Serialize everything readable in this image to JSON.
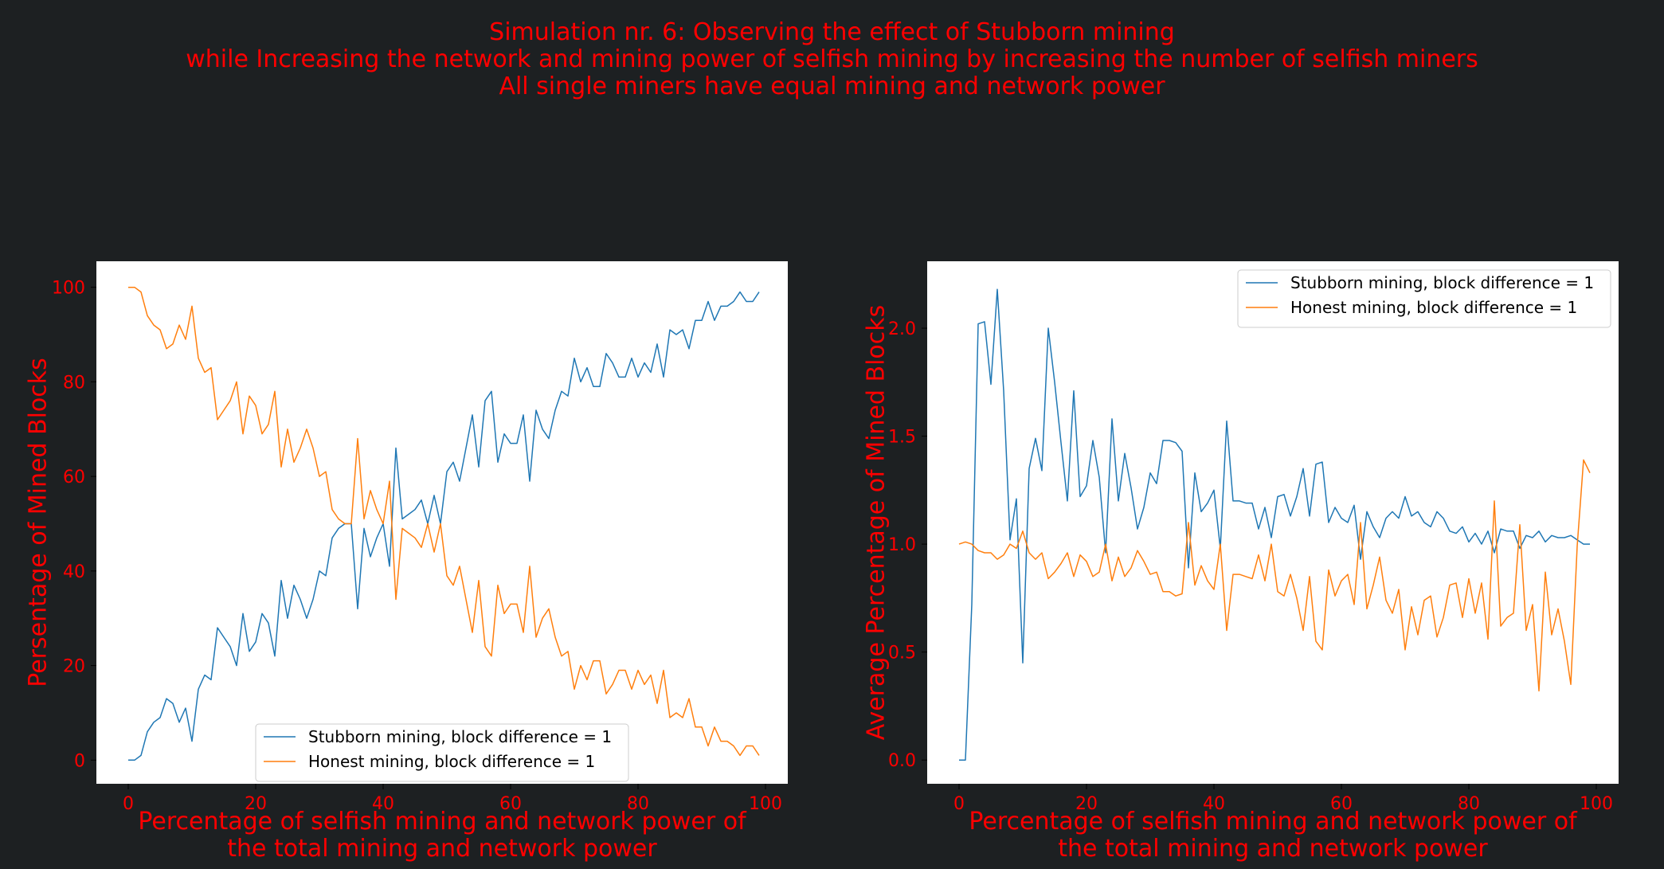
{
  "figure": {
    "title_lines": [
      "Simulation nr. 6: Observing the effect of Stubborn mining",
      "while Increasing the network and mining power of selfish mining by increasing the number of selfish miners",
      "All single miners have equal mining and network power"
    ]
  },
  "chart_data": [
    {
      "type": "line",
      "xlabel": "Percentage of selfish mining and network power of\nthe total mining and network power",
      "ylabel": "Persentage of Mined Blocks",
      "xlim": [
        -5,
        103.5
      ],
      "ylim": [
        -5,
        105.5
      ],
      "xticks": [
        0,
        20,
        40,
        60,
        80,
        100
      ],
      "yticks": [
        0,
        20,
        40,
        60,
        80,
        100
      ],
      "grid": false,
      "legend": "lower-right",
      "colors": [
        "#1f77b4",
        "#ff7f0e"
      ],
      "series": [
        {
          "name": "Stubborn mining, block difference = 1",
          "x": [
            0,
            1,
            2,
            3,
            4,
            5,
            6,
            7,
            8,
            9,
            10,
            11,
            12,
            13,
            14,
            15,
            16,
            17,
            18,
            19,
            20,
            21,
            22,
            23,
            24,
            25,
            26,
            27,
            28,
            29,
            30,
            31,
            32,
            33,
            34,
            35,
            36,
            37,
            38,
            39,
            40,
            41,
            42,
            43,
            44,
            45,
            46,
            47,
            48,
            49,
            50,
            51,
            52,
            53,
            54,
            55,
            56,
            57,
            58,
            59,
            60,
            61,
            62,
            63,
            64,
            65,
            66,
            67,
            68,
            69,
            70,
            71,
            72,
            73,
            74,
            75,
            76,
            77,
            78,
            79,
            80,
            81,
            82,
            83,
            84,
            85,
            86,
            87,
            88,
            89,
            90,
            91,
            92,
            93,
            94,
            95,
            96,
            97,
            98,
            99
          ],
          "values": [
            0,
            0,
            1,
            6,
            8,
            9,
            13,
            12,
            8,
            11,
            4,
            15,
            18,
            17,
            28,
            26,
            24,
            20,
            31,
            23,
            25,
            31,
            29,
            22,
            38,
            30,
            37,
            34,
            30,
            34,
            40,
            39,
            47,
            49,
            50,
            50,
            32,
            49,
            43,
            47,
            50,
            41,
            66,
            51,
            52,
            53,
            55,
            50,
            56,
            50,
            61,
            63,
            59,
            66,
            73,
            62,
            76,
            78,
            63,
            69,
            67,
            67,
            73,
            59,
            74,
            70,
            68,
            74,
            78,
            77,
            85,
            80,
            83,
            79,
            79,
            86,
            84,
            81,
            81,
            85,
            81,
            84,
            82,
            88,
            81,
            91,
            90,
            91,
            87,
            93,
            93,
            97,
            93,
            96,
            96,
            97,
            99,
            97,
            97,
            99
          ]
        },
        {
          "name": "Honest mining, block difference = 1",
          "x": [
            0,
            1,
            2,
            3,
            4,
            5,
            6,
            7,
            8,
            9,
            10,
            11,
            12,
            13,
            14,
            15,
            16,
            17,
            18,
            19,
            20,
            21,
            22,
            23,
            24,
            25,
            26,
            27,
            28,
            29,
            30,
            31,
            32,
            33,
            34,
            35,
            36,
            37,
            38,
            39,
            40,
            41,
            42,
            43,
            44,
            45,
            46,
            47,
            48,
            49,
            50,
            51,
            52,
            53,
            54,
            55,
            56,
            57,
            58,
            59,
            60,
            61,
            62,
            63,
            64,
            65,
            66,
            67,
            68,
            69,
            70,
            71,
            72,
            73,
            74,
            75,
            76,
            77,
            78,
            79,
            80,
            81,
            82,
            83,
            84,
            85,
            86,
            87,
            88,
            89,
            90,
            91,
            92,
            93,
            94,
            95,
            96,
            97,
            98,
            99
          ],
          "values": [
            100,
            100,
            99,
            94,
            92,
            91,
            87,
            88,
            92,
            89,
            96,
            85,
            82,
            83,
            72,
            74,
            76,
            80,
            69,
            77,
            75,
            69,
            71,
            78,
            62,
            70,
            63,
            66,
            70,
            66,
            60,
            61,
            53,
            51,
            50,
            50,
            68,
            51,
            57,
            53,
            50,
            59,
            34,
            49,
            48,
            47,
            45,
            50,
            44,
            50,
            39,
            37,
            41,
            34,
            27,
            38,
            24,
            22,
            37,
            31,
            33,
            33,
            27,
            41,
            26,
            30,
            32,
            26,
            22,
            23,
            15,
            20,
            17,
            21,
            21,
            14,
            16,
            19,
            19,
            15,
            19,
            16,
            18,
            12,
            19,
            9,
            10,
            9,
            13,
            7,
            7,
            3,
            7,
            4,
            4,
            3,
            1,
            3,
            3,
            1
          ]
        }
      ]
    },
    {
      "type": "line",
      "xlabel": "Percentage of selfish mining and network power of\nthe total mining and network power",
      "ylabel": "Average Percentage of Mined Blocks",
      "xlim": [
        -5,
        103.5
      ],
      "ylim": [
        -0.11,
        2.31
      ],
      "xticks": [
        0,
        20,
        40,
        60,
        80,
        100
      ],
      "yticks": [
        0.0,
        0.5,
        1.0,
        1.5,
        2.0
      ],
      "grid": false,
      "legend": "upper-right",
      "colors": [
        "#1f77b4",
        "#ff7f0e"
      ],
      "series": [
        {
          "name": "Stubborn mining, block difference = 1",
          "x": [
            0,
            1,
            2,
            3,
            4,
            5,
            6,
            7,
            8,
            9,
            10,
            11,
            12,
            13,
            14,
            15,
            16,
            17,
            18,
            19,
            20,
            21,
            22,
            23,
            24,
            25,
            26,
            27,
            28,
            29,
            30,
            31,
            32,
            33,
            34,
            35,
            36,
            37,
            38,
            39,
            40,
            41,
            42,
            43,
            44,
            45,
            46,
            47,
            48,
            49,
            50,
            51,
            52,
            53,
            54,
            55,
            56,
            57,
            58,
            59,
            60,
            61,
            62,
            63,
            64,
            65,
            66,
            67,
            68,
            69,
            70,
            71,
            72,
            73,
            74,
            75,
            76,
            77,
            78,
            79,
            80,
            81,
            82,
            83,
            84,
            85,
            86,
            87,
            88,
            89,
            90,
            91,
            92,
            93,
            94,
            95,
            96,
            97,
            98,
            99
          ],
          "values": [
            0,
            0,
            0.72,
            2.02,
            2.03,
            1.74,
            2.18,
            1.71,
            1.02,
            1.21,
            0.45,
            1.35,
            1.49,
            1.34,
            2.0,
            1.75,
            1.47,
            1.2,
            1.71,
            1.22,
            1.27,
            1.48,
            1.31,
            0.96,
            1.58,
            1.2,
            1.42,
            1.26,
            1.07,
            1.17,
            1.33,
            1.28,
            1.48,
            1.48,
            1.47,
            1.43,
            0.89,
            1.33,
            1.15,
            1.19,
            1.25,
            0.98,
            1.57,
            1.2,
            1.2,
            1.19,
            1.19,
            1.07,
            1.17,
            1.03,
            1.22,
            1.23,
            1.13,
            1.22,
            1.35,
            1.13,
            1.37,
            1.38,
            1.1,
            1.17,
            1.12,
            1.1,
            1.18,
            0.93,
            1.15,
            1.08,
            1.03,
            1.12,
            1.15,
            1.12,
            1.22,
            1.13,
            1.15,
            1.1,
            1.08,
            1.15,
            1.12,
            1.06,
            1.05,
            1.08,
            1.01,
            1.05,
            1.0,
            1.06,
            0.96,
            1.07,
            1.06,
            1.06,
            0.98,
            1.04,
            1.03,
            1.06,
            1.01,
            1.04,
            1.03,
            1.03,
            1.04,
            1.02,
            1.0,
            1.0
          ]
        },
        {
          "name": "Honest mining, block difference = 1",
          "x": [
            0,
            1,
            2,
            3,
            4,
            5,
            6,
            7,
            8,
            9,
            10,
            11,
            12,
            13,
            14,
            15,
            16,
            17,
            18,
            19,
            20,
            21,
            22,
            23,
            24,
            25,
            26,
            27,
            28,
            29,
            30,
            31,
            32,
            33,
            34,
            35,
            36,
            37,
            38,
            39,
            40,
            41,
            42,
            43,
            44,
            45,
            46,
            47,
            48,
            49,
            50,
            51,
            52,
            53,
            54,
            55,
            56,
            57,
            58,
            59,
            60,
            61,
            62,
            63,
            64,
            65,
            66,
            67,
            68,
            69,
            70,
            71,
            72,
            73,
            74,
            75,
            76,
            77,
            78,
            79,
            80,
            81,
            82,
            83,
            84,
            85,
            86,
            87,
            88,
            89,
            90,
            91,
            92,
            93,
            94,
            95,
            96,
            97,
            98,
            99
          ],
          "values": [
            1.0,
            1.01,
            1.0,
            0.97,
            0.96,
            0.96,
            0.93,
            0.95,
            1.0,
            0.98,
            1.06,
            0.96,
            0.93,
            0.96,
            0.84,
            0.87,
            0.91,
            0.96,
            0.85,
            0.95,
            0.92,
            0.85,
            0.87,
            1.0,
            0.83,
            0.94,
            0.85,
            0.89,
            0.97,
            0.92,
            0.86,
            0.87,
            0.78,
            0.78,
            0.76,
            0.77,
            1.1,
            0.81,
            0.9,
            0.83,
            0.79,
            1.0,
            0.6,
            0.86,
            0.86,
            0.85,
            0.84,
            0.95,
            0.83,
            1.0,
            0.78,
            0.76,
            0.86,
            0.75,
            0.6,
            0.85,
            0.55,
            0.51,
            0.88,
            0.76,
            0.83,
            0.86,
            0.72,
            1.1,
            0.7,
            0.81,
            0.94,
            0.74,
            0.68,
            0.79,
            0.51,
            0.71,
            0.58,
            0.74,
            0.76,
            0.57,
            0.66,
            0.81,
            0.82,
            0.66,
            0.84,
            0.68,
            0.82,
            0.56,
            1.2,
            0.62,
            0.66,
            0.68,
            1.09,
            0.6,
            0.72,
            0.32,
            0.87,
            0.58,
            0.7,
            0.55,
            0.35,
            0.99,
            1.39,
            1.33
          ]
        }
      ]
    }
  ]
}
